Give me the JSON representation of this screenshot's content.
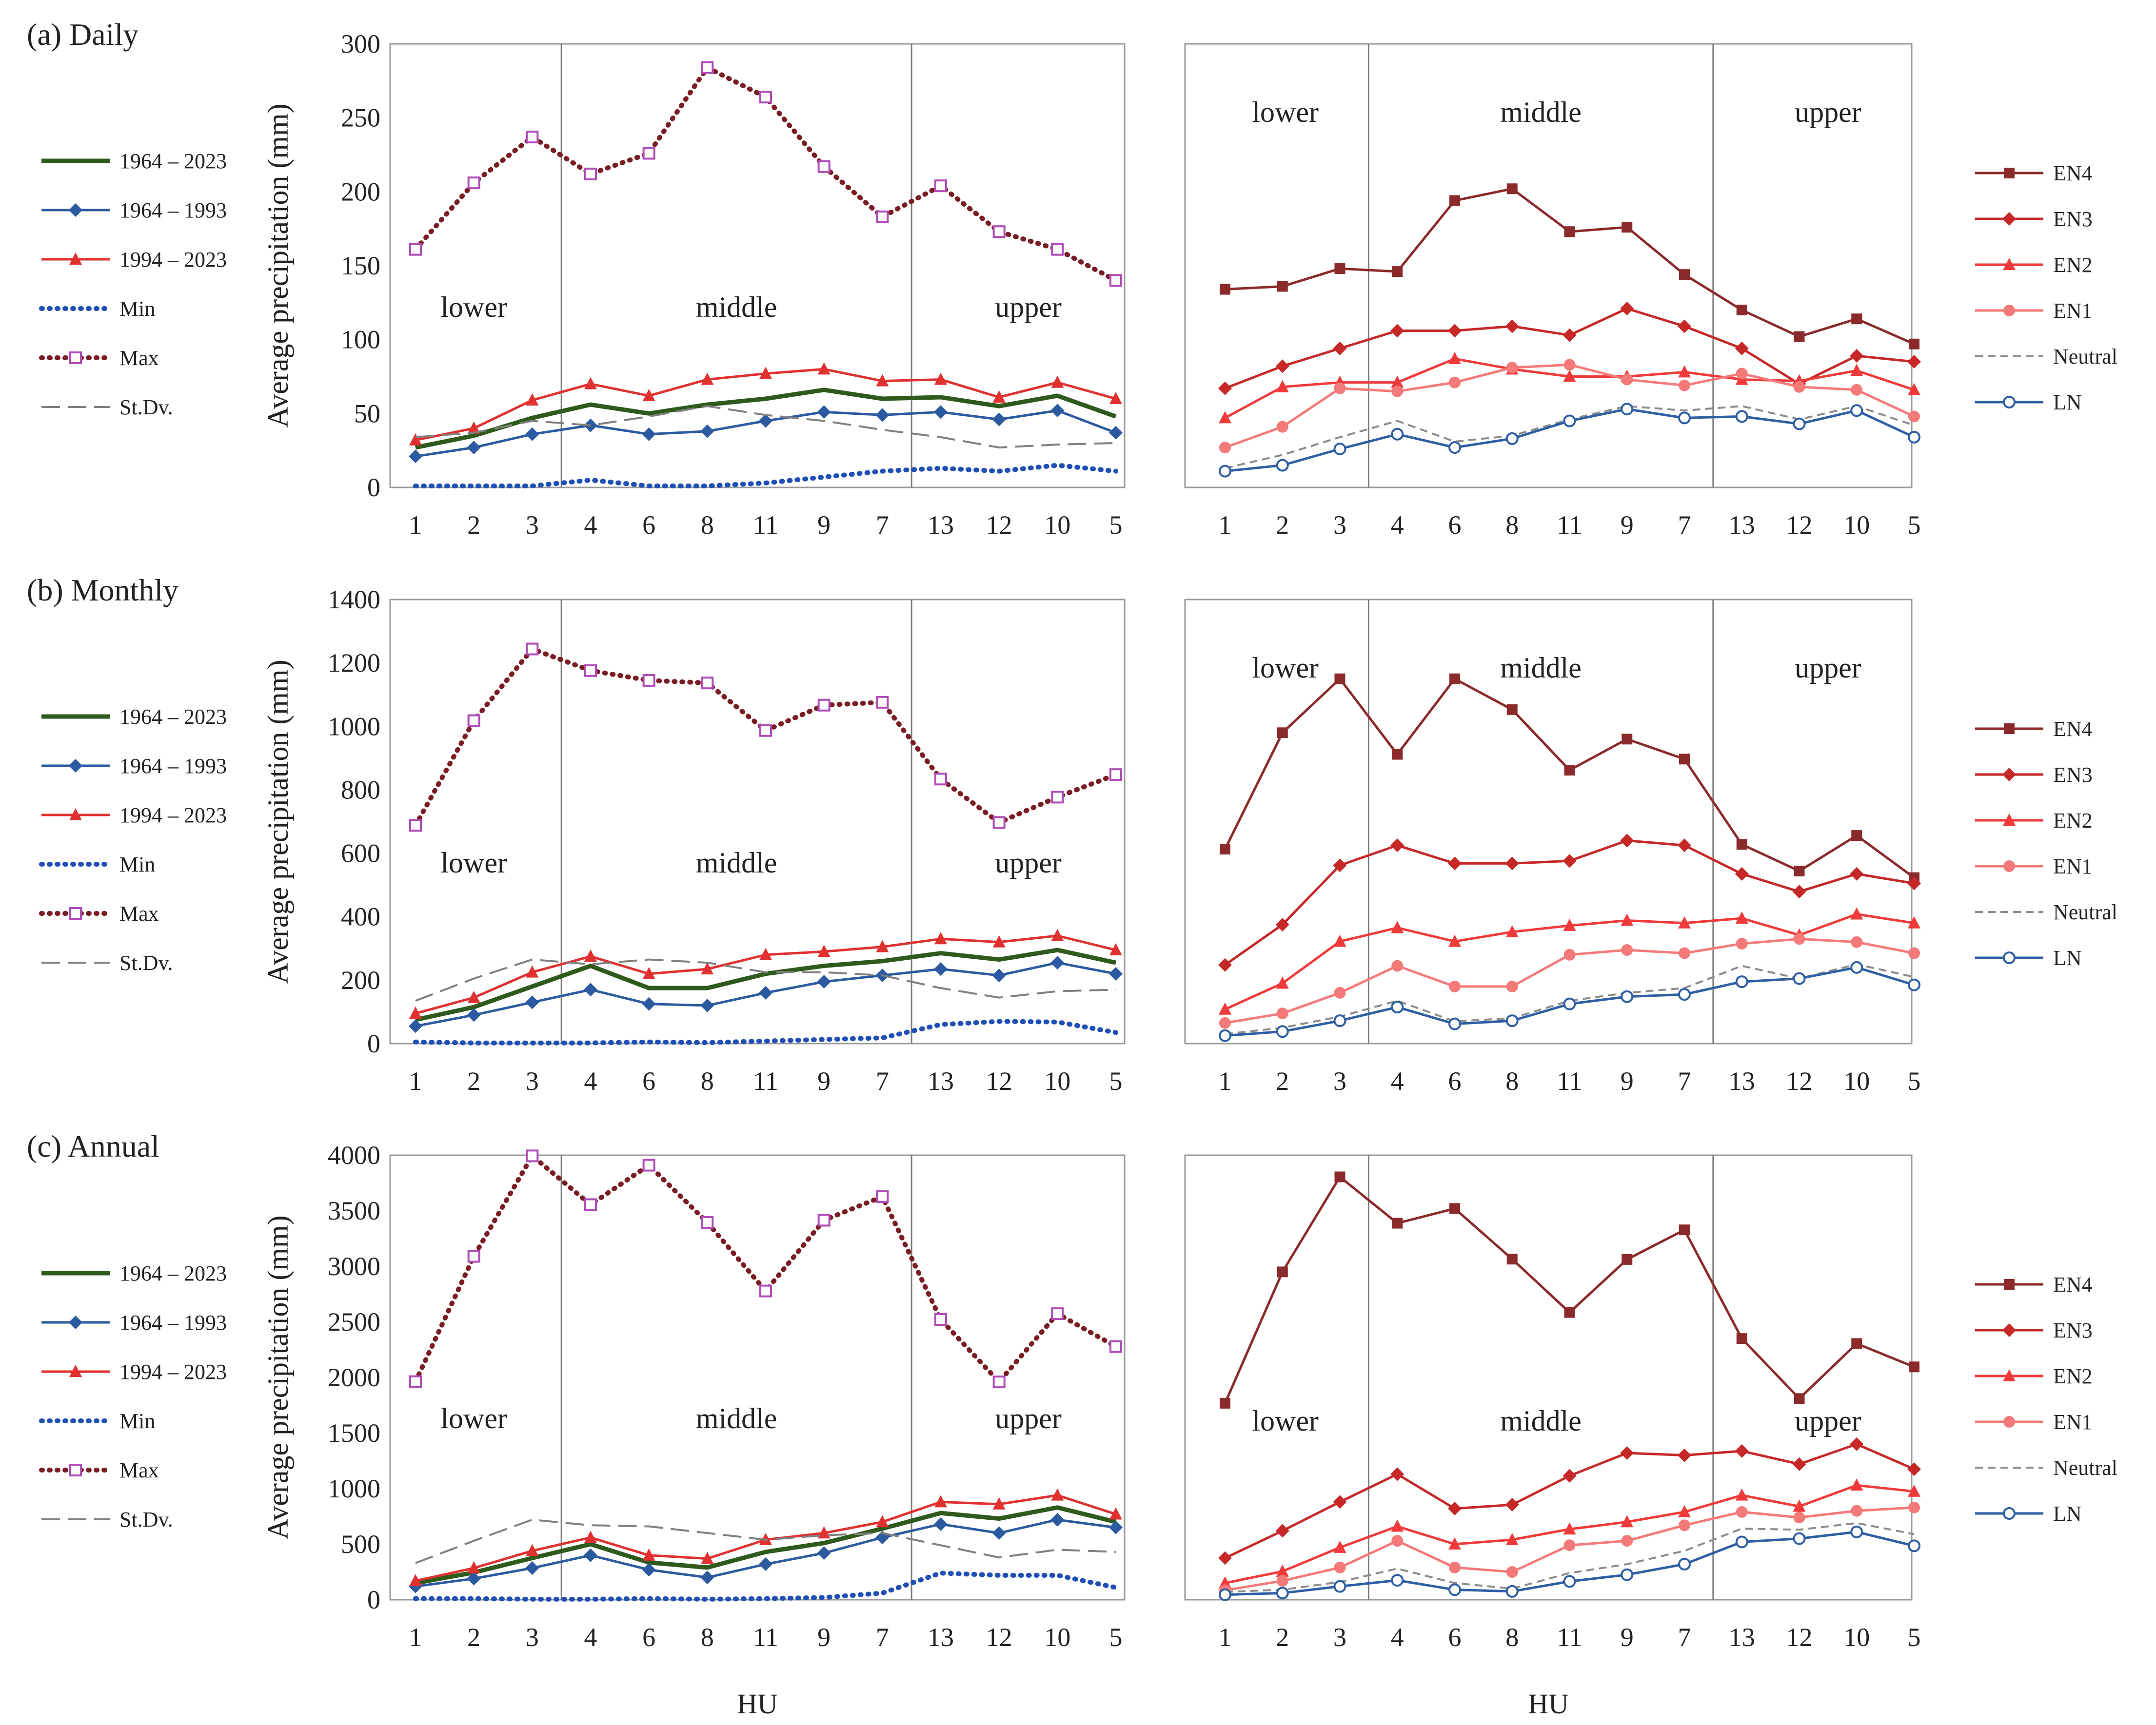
{
  "x_axis_title": "HU",
  "y_axis_title": "Average precipitation (mm)",
  "hu_order": [
    "1",
    "2",
    "3",
    "4",
    "6",
    "8",
    "11",
    "9",
    "7",
    "13",
    "12",
    "10",
    "5"
  ],
  "zones": [
    "lower",
    "middle",
    "upper"
  ],
  "panels": [
    {
      "id": "a",
      "title": "(a) Daily"
    },
    {
      "id": "b",
      "title": "(b) Monthly"
    },
    {
      "id": "c",
      "title": "(c) Annual"
    }
  ],
  "legend_left": [
    {
      "key": "all",
      "label": "1964 – 2023"
    },
    {
      "key": "early",
      "label": "1964 – 1993"
    },
    {
      "key": "late",
      "label": "1994 – 2023"
    },
    {
      "key": "min",
      "label": "Min"
    },
    {
      "key": "max",
      "label": "Max"
    },
    {
      "key": "sd",
      "label": "St.Dv."
    }
  ],
  "legend_right": [
    {
      "key": "EN4",
      "label": "EN4"
    },
    {
      "key": "EN3",
      "label": "EN3"
    },
    {
      "key": "EN2",
      "label": "EN2"
    },
    {
      "key": "EN1",
      "label": "EN1"
    },
    {
      "key": "Neutral",
      "label": "Neutral"
    },
    {
      "key": "LN",
      "label": "LN"
    }
  ],
  "styles": {
    "all": {
      "color": "#2e5a1c"
    },
    "early": {
      "color": "#2c5aa0"
    },
    "late": {
      "color": "#e03030"
    },
    "min": {
      "color": "#1f4fb5"
    },
    "max": {
      "color": "#7a1c24",
      "marker_color": "#b04cb8"
    },
    "sd": {
      "color": "#808080"
    },
    "EN4": {
      "color": "#8b2a2a"
    },
    "EN3": {
      "color": "#c62828"
    },
    "EN2": {
      "color": "#f03a3a"
    },
    "EN1": {
      "color": "#f47a7a"
    },
    "Neutral": {
      "color": "#8c8c8c"
    },
    "LN": {
      "color": "#2e5fa3"
    }
  },
  "chart_data": [
    {
      "type": "line",
      "panel": "a",
      "side": "left",
      "title": "(a) Daily",
      "ylim": [
        0,
        300
      ],
      "yticks": [
        0,
        50,
        100,
        150,
        200,
        250,
        300
      ],
      "xlabel": "",
      "ylabel": "Average precipitation (mm)",
      "categories": [
        "1",
        "2",
        "3",
        "4",
        "6",
        "8",
        "11",
        "9",
        "7",
        "13",
        "12",
        "10",
        "5"
      ],
      "series": [
        {
          "key": "all",
          "name": "1964 – 2023",
          "values": [
            27,
            35,
            47,
            56,
            50,
            56,
            60,
            66,
            60,
            61,
            55,
            62,
            48
          ]
        },
        {
          "key": "early",
          "name": "1964 – 1993",
          "values": [
            21,
            27,
            36,
            42,
            36,
            38,
            45,
            51,
            49,
            51,
            46,
            52,
            37
          ]
        },
        {
          "key": "late",
          "name": "1994 – 2023",
          "values": [
            32,
            40,
            59,
            70,
            62,
            73,
            77,
            80,
            72,
            73,
            61,
            71,
            60
          ]
        },
        {
          "key": "min",
          "name": "Min",
          "values": [
            1,
            1,
            1,
            5,
            1,
            1,
            3,
            7,
            11,
            13,
            11,
            15,
            11
          ]
        },
        {
          "key": "max",
          "name": "Max",
          "values": [
            161,
            206,
            237,
            212,
            226,
            284,
            264,
            217,
            183,
            204,
            173,
            161,
            140
          ]
        },
        {
          "key": "sd",
          "name": "St.Dv.",
          "values": [
            34,
            37,
            45,
            42,
            48,
            55,
            49,
            45,
            39,
            34,
            27,
            29,
            30
          ]
        }
      ]
    },
    {
      "type": "line",
      "panel": "a",
      "side": "right",
      "title": "",
      "ylim": [
        0,
        300
      ],
      "categories": [
        "1",
        "2",
        "3",
        "4",
        "6",
        "8",
        "11",
        "9",
        "7",
        "13",
        "12",
        "10",
        "5"
      ],
      "series": [
        {
          "key": "EN4",
          "name": "EN4",
          "values": [
            134,
            136,
            148,
            146,
            194,
            202,
            173,
            176,
            144,
            120,
            102,
            114,
            97
          ]
        },
        {
          "key": "EN3",
          "name": "EN3",
          "values": [
            67,
            82,
            94,
            106,
            106,
            109,
            103,
            121,
            109,
            94,
            70,
            89,
            85
          ]
        },
        {
          "key": "EN2",
          "name": "EN2",
          "values": [
            47,
            68,
            71,
            71,
            87,
            80,
            75,
            75,
            78,
            73,
            72,
            79,
            66
          ]
        },
        {
          "key": "EN1",
          "name": "EN1",
          "values": [
            27,
            41,
            67,
            65,
            71,
            81,
            83,
            73,
            69,
            77,
            68,
            66,
            48
          ]
        },
        {
          "key": "Neutral",
          "name": "Neutral",
          "values": [
            13,
            22,
            34,
            45,
            31,
            35,
            46,
            55,
            52,
            55,
            46,
            55,
            42
          ]
        },
        {
          "key": "LN",
          "name": "LN",
          "values": [
            11,
            15,
            26,
            36,
            27,
            33,
            45,
            53,
            47,
            48,
            43,
            52,
            34
          ]
        }
      ]
    },
    {
      "type": "line",
      "panel": "b",
      "side": "left",
      "title": "(b) Monthly",
      "ylim": [
        0,
        1400
      ],
      "yticks": [
        0,
        200,
        400,
        600,
        800,
        1000,
        1200,
        1400
      ],
      "ylabel": "Average precipitation (mm)",
      "categories": [
        "1",
        "2",
        "3",
        "4",
        "6",
        "8",
        "11",
        "9",
        "7",
        "13",
        "12",
        "10",
        "5"
      ],
      "series": [
        {
          "key": "all",
          "name": "1964 – 2023",
          "values": [
            75,
            115,
            180,
            245,
            175,
            175,
            220,
            245,
            260,
            285,
            265,
            295,
            255
          ]
        },
        {
          "key": "early",
          "name": "1964 – 1993",
          "values": [
            55,
            90,
            130,
            170,
            125,
            120,
            160,
            195,
            215,
            235,
            215,
            255,
            220
          ]
        },
        {
          "key": "late",
          "name": "1994 – 2023",
          "values": [
            95,
            145,
            225,
            275,
            220,
            235,
            280,
            290,
            305,
            330,
            320,
            340,
            295
          ]
        },
        {
          "key": "min",
          "name": "Min",
          "values": [
            5,
            2,
            2,
            2,
            5,
            3,
            8,
            13,
            18,
            60,
            70,
            68,
            35
          ]
        },
        {
          "key": "max",
          "name": "Max",
          "values": [
            688,
            1018,
            1244,
            1176,
            1145,
            1137,
            987,
            1067,
            1076,
            834,
            697,
            777,
            848
          ]
        },
        {
          "key": "sd",
          "name": "St.Dv.",
          "values": [
            135,
            205,
            265,
            250,
            265,
            255,
            225,
            225,
            215,
            175,
            145,
            165,
            170
          ]
        }
      ]
    },
    {
      "type": "line",
      "panel": "b",
      "side": "right",
      "title": "",
      "ylim": [
        0,
        1400
      ],
      "categories": [
        "1",
        "2",
        "3",
        "4",
        "6",
        "8",
        "11",
        "9",
        "7",
        "13",
        "12",
        "10",
        "5"
      ],
      "series": [
        {
          "key": "EN4",
          "name": "EN4",
          "values": [
            613,
            980,
            1150,
            912,
            1150,
            1053,
            862,
            960,
            897,
            628,
            544,
            656,
            523
          ]
        },
        {
          "key": "EN3",
          "name": "EN3",
          "values": [
            248,
            375,
            562,
            625,
            568,
            568,
            576,
            640,
            625,
            535,
            479,
            535,
            505
          ]
        },
        {
          "key": "EN2",
          "name": "EN2",
          "values": [
            108,
            190,
            322,
            365,
            322,
            352,
            372,
            388,
            380,
            395,
            342,
            408,
            380
          ]
        },
        {
          "key": "EN1",
          "name": "EN1",
          "values": [
            65,
            95,
            160,
            245,
            180,
            180,
            280,
            295,
            285,
            315,
            330,
            320,
            285
          ]
        },
        {
          "key": "Neutral",
          "name": "Neutral",
          "values": [
            30,
            50,
            85,
            135,
            70,
            80,
            135,
            160,
            175,
            245,
            205,
            250,
            210
          ]
        },
        {
          "key": "LN",
          "name": "LN",
          "values": [
            25,
            38,
            72,
            115,
            62,
            72,
            125,
            148,
            155,
            195,
            205,
            240,
            185
          ]
        }
      ]
    },
    {
      "type": "line",
      "panel": "c",
      "side": "left",
      "title": "(c) Annual",
      "ylim": [
        0,
        4000
      ],
      "yticks": [
        0,
        500,
        1000,
        1500,
        2000,
        2500,
        3000,
        3500,
        4000
      ],
      "ylabel": "Average precipitation (mm)",
      "categories": [
        "1",
        "2",
        "3",
        "4",
        "6",
        "8",
        "11",
        "9",
        "7",
        "13",
        "12",
        "10",
        "5"
      ],
      "series": [
        {
          "key": "all",
          "name": "1964 – 2023",
          "values": [
            150,
            245,
            375,
            500,
            335,
            290,
            430,
            510,
            640,
            780,
            730,
            830,
            700
          ]
        },
        {
          "key": "early",
          "name": "1964 – 1993",
          "values": [
            120,
            190,
            285,
            400,
            270,
            200,
            320,
            420,
            560,
            680,
            600,
            720,
            650
          ]
        },
        {
          "key": "late",
          "name": "1994 – 2023",
          "values": [
            170,
            285,
            440,
            560,
            400,
            370,
            540,
            600,
            700,
            880,
            860,
            940,
            770
          ]
        },
        {
          "key": "min",
          "name": "Min",
          "values": [
            10,
            10,
            5,
            5,
            10,
            5,
            10,
            20,
            60,
            240,
            220,
            220,
            110
          ]
        },
        {
          "key": "max",
          "name": "Max",
          "values": [
            1962,
            3090,
            3994,
            3555,
            3910,
            3395,
            2778,
            3415,
            3627,
            2522,
            1960,
            2574,
            2278
          ]
        },
        {
          "key": "sd",
          "name": "St.Dv.",
          "values": [
            330,
            530,
            720,
            670,
            660,
            600,
            540,
            580,
            600,
            490,
            380,
            450,
            430
          ]
        }
      ]
    },
    {
      "type": "line",
      "panel": "c",
      "side": "right",
      "title": "",
      "ylim": [
        0,
        4000
      ],
      "xlabel": "HU",
      "categories": [
        "1",
        "2",
        "3",
        "4",
        "6",
        "8",
        "11",
        "9",
        "7",
        "13",
        "12",
        "10",
        "5"
      ],
      "series": [
        {
          "key": "EN4",
          "name": "EN4",
          "values": [
            1768,
            2950,
            3805,
            3388,
            3520,
            3065,
            2585,
            3062,
            3328,
            2350,
            1810,
            2305,
            2095
          ]
        },
        {
          "key": "EN3",
          "name": "EN3",
          "values": [
            375,
            620,
            880,
            1130,
            820,
            855,
            1115,
            1320,
            1300,
            1338,
            1220,
            1400,
            1175
          ]
        },
        {
          "key": "EN2",
          "name": "EN2",
          "values": [
            150,
            255,
            470,
            660,
            500,
            540,
            635,
            700,
            790,
            940,
            840,
            1030,
            975
          ]
        },
        {
          "key": "EN1",
          "name": "EN1",
          "values": [
            85,
            170,
            290,
            530,
            290,
            250,
            490,
            530,
            670,
            790,
            740,
            800,
            830
          ]
        },
        {
          "key": "Neutral",
          "name": "Neutral",
          "values": [
            70,
            90,
            160,
            280,
            150,
            100,
            240,
            320,
            440,
            640,
            630,
            690,
            590
          ]
        },
        {
          "key": "LN",
          "name": "LN",
          "values": [
            45,
            60,
            120,
            175,
            90,
            75,
            165,
            225,
            320,
            520,
            550,
            610,
            485
          ]
        }
      ]
    }
  ]
}
